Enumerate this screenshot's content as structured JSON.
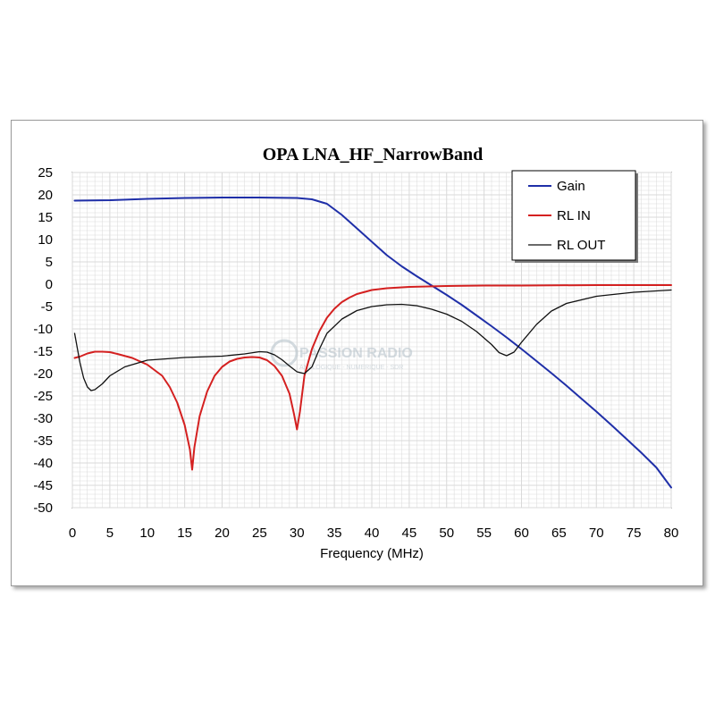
{
  "chart_data": {
    "type": "line",
    "title": "OPA LNA_HF_NarrowBand",
    "xlabel": "Frequency (MHz)",
    "ylabel": "",
    "xlim": [
      0,
      80
    ],
    "ylim": [
      -50,
      25
    ],
    "xticks": [
      0,
      5,
      10,
      15,
      20,
      25,
      30,
      35,
      40,
      45,
      50,
      55,
      60,
      65,
      70,
      75,
      80
    ],
    "yticks": [
      25,
      20,
      15,
      10,
      5,
      0,
      -5,
      -10,
      -15,
      -20,
      -25,
      -30,
      -35,
      -40,
      -45,
      -50
    ],
    "grid": true,
    "legend_position": "top-right",
    "series": [
      {
        "name": "Gain",
        "color": "#1f2fa8",
        "x": [
          0.3,
          5,
          10,
          15,
          20,
          25,
          30,
          32,
          34,
          36,
          38,
          40,
          42,
          44,
          46,
          48,
          50,
          52,
          54,
          56,
          58,
          60,
          62,
          64,
          66,
          68,
          70,
          72,
          74,
          76,
          78,
          80
        ],
        "y": [
          18.7,
          18.8,
          19.1,
          19.3,
          19.4,
          19.4,
          19.3,
          19.0,
          18.0,
          15.5,
          12.5,
          9.5,
          6.5,
          4.0,
          1.8,
          -0.3,
          -2.4,
          -4.6,
          -7.0,
          -9.4,
          -11.9,
          -14.5,
          -17.2,
          -19.9,
          -22.7,
          -25.6,
          -28.5,
          -31.5,
          -34.6,
          -37.7,
          -41.0,
          -45.5
        ]
      },
      {
        "name": "RL IN",
        "color": "#d42020",
        "x": [
          0.3,
          1,
          2,
          3,
          4,
          5,
          6,
          8,
          10,
          12,
          13,
          14,
          15,
          15.7,
          16,
          16.3,
          17,
          18,
          19,
          20,
          21,
          22,
          23,
          24,
          25,
          26,
          27,
          28,
          29,
          29.6,
          30,
          30.4,
          31,
          32,
          33,
          34,
          35,
          36,
          37,
          38,
          40,
          42,
          45,
          50,
          55,
          60,
          70,
          80
        ],
        "y": [
          -16.5,
          -16.2,
          -15.5,
          -15.1,
          -15.1,
          -15.2,
          -15.6,
          -16.5,
          -18.0,
          -20.5,
          -23.0,
          -26.5,
          -31.5,
          -37.0,
          -41.5,
          -36.5,
          -29.5,
          -24.0,
          -20.5,
          -18.5,
          -17.3,
          -16.7,
          -16.4,
          -16.3,
          -16.4,
          -17.0,
          -18.3,
          -20.5,
          -24.5,
          -29.0,
          -32.5,
          -28.5,
          -20.5,
          -14.5,
          -10.5,
          -7.5,
          -5.5,
          -4.0,
          -3.0,
          -2.2,
          -1.3,
          -0.9,
          -0.6,
          -0.4,
          -0.3,
          -0.3,
          -0.2,
          -0.2
        ]
      },
      {
        "name": "RL OUT",
        "color": "#111111",
        "x": [
          0.3,
          1,
          1.5,
          2,
          2.5,
          3,
          4,
          5,
          7,
          10,
          15,
          20,
          23,
          25,
          26,
          27,
          28,
          29,
          30,
          31,
          32,
          33,
          34,
          36,
          38,
          40,
          42,
          44,
          46,
          48,
          50,
          52,
          54,
          56,
          57,
          58,
          59,
          60,
          62,
          64,
          66,
          70,
          75,
          80
        ],
        "y": [
          -11.0,
          -17.5,
          -21.0,
          -23.0,
          -23.8,
          -23.6,
          -22.3,
          -20.5,
          -18.5,
          -17.0,
          -16.4,
          -16.1,
          -15.6,
          -15.1,
          -15.2,
          -15.8,
          -16.9,
          -18.3,
          -19.6,
          -20.0,
          -18.5,
          -14.5,
          -11.0,
          -7.8,
          -5.9,
          -5.0,
          -4.6,
          -4.5,
          -4.8,
          -5.6,
          -6.7,
          -8.3,
          -10.6,
          -13.5,
          -15.3,
          -16.0,
          -15.2,
          -13.0,
          -9.0,
          -6.0,
          -4.3,
          -2.7,
          -1.8,
          -1.3
        ]
      }
    ]
  },
  "watermark": {
    "line1": "PASSION RADIO",
    "line2": "ANALOGIQUE - NUMERIQUE - SDR"
  }
}
